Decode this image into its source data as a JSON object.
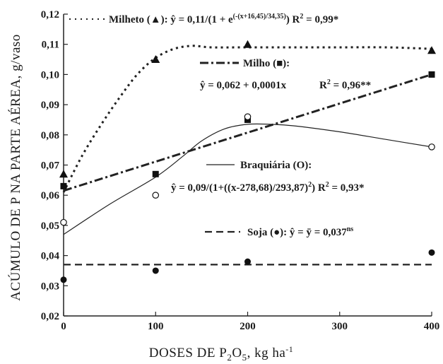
{
  "chart_data": {
    "type": "scatter",
    "xlabel": "DOSES DE P2O5, kg ha-1",
    "xlabel_parts": {
      "a": "DOSES DE P",
      "sub": "2",
      "b": "O",
      "sub2": "5",
      "c": ", kg ha",
      "sup": "-1"
    },
    "ylabel": "ACÚMULO DE P NA PARTE AÉREA, g/vaso",
    "xlim": [
      0,
      400
    ],
    "ylim": [
      0.02,
      0.12
    ],
    "x_ticks": [
      0,
      100,
      200,
      300,
      400
    ],
    "x_tick_labels": [
      "0",
      "100",
      "200",
      "300",
      "400"
    ],
    "y_ticks": [
      0.02,
      0.03,
      0.04,
      0.05,
      0.06,
      0.07,
      0.08,
      0.09,
      0.1,
      0.11,
      0.12
    ],
    "y_tick_labels": [
      "0,02",
      "0,03",
      "0,04",
      "0,05",
      "0,06",
      "0,07",
      "0,08",
      "0,09",
      "0,10",
      "0,11",
      "0,12"
    ],
    "grid": false,
    "series": [
      {
        "name": "Milheto",
        "marker": "triangle",
        "line_style": "dotted",
        "x": [
          0,
          100,
          200,
          400
        ],
        "y": [
          0.067,
          0.105,
          0.11,
          0.108
        ],
        "fit_curve": {
          "x": [
            0,
            20,
            40,
            60,
            80,
            100,
            120,
            140,
            160,
            200,
            250,
            300,
            350,
            400
          ],
          "y": [
            0.061,
            0.073,
            0.083,
            0.092,
            0.1,
            0.1055,
            0.1085,
            0.1095,
            0.109,
            0.109,
            0.109,
            0.109,
            0.109,
            0.1085
          ]
        }
      },
      {
        "name": "Milho",
        "marker": "square",
        "line_style": "dash-dot",
        "x": [
          0,
          100,
          200,
          400
        ],
        "y": [
          0.063,
          0.067,
          0.085,
          0.1
        ],
        "fit_curve": {
          "x": [
            0,
            400
          ],
          "y": [
            0.0615,
            0.1
          ]
        }
      },
      {
        "name": "Braquiária",
        "marker": "open-circle",
        "line_style": "solid",
        "x": [
          0,
          100,
          200,
          400
        ],
        "y": [
          0.051,
          0.06,
          0.086,
          0.076
        ],
        "fit_curve": {
          "x": [
            0,
            50,
            100,
            130,
            150,
            175,
            200,
            225,
            250,
            300,
            350,
            400
          ],
          "y": [
            0.047,
            0.057,
            0.066,
            0.073,
            0.078,
            0.082,
            0.0835,
            0.0835,
            0.083,
            0.081,
            0.0785,
            0.076
          ]
        }
      },
      {
        "name": "Soja",
        "marker": "filled-circle",
        "line_style": "dashed",
        "x": [
          0,
          100,
          200,
          400
        ],
        "y": [
          0.032,
          0.035,
          0.038,
          0.041
        ],
        "fit_curve": {
          "x": [
            0,
            400
          ],
          "y": [
            0.037,
            0.037
          ]
        }
      }
    ],
    "annotations": {
      "milheto_eq": "Milheto (▲): ŷ = 0,11/(1 + e(-(x+16,45)/34,35)) R2 = 0,99*",
      "milheto_name": "Milheto (",
      "milheto_eq_a": "): ŷ = 0,11/(1 + e",
      "milheto_exp": "(-(x+16,45)/34,35)",
      "milheto_eq_b": ")  R",
      "milheto_r2": "2",
      "milheto_r2_val": " = 0,99*",
      "milho_name": "Milho (",
      "milho_close": "):",
      "milho_eq": "ŷ = 0,062 + 0,0001x",
      "milho_r": "R",
      "milho_r2": "2",
      "milho_r2_val": " = 0,96**",
      "braq_name": "Braquiária (O):",
      "braq_eq_a": "ŷ = 0,09/(1+((x-278,68)/293,87)",
      "braq_eq_sup": "2",
      "braq_eq_b": ")  R",
      "braq_r2": "2",
      "braq_r2_val": " = 0,93*",
      "soja_name": "Soja (",
      "soja_eq": "): ŷ = ȳ = 0,037",
      "soja_ns": "ns"
    }
  }
}
